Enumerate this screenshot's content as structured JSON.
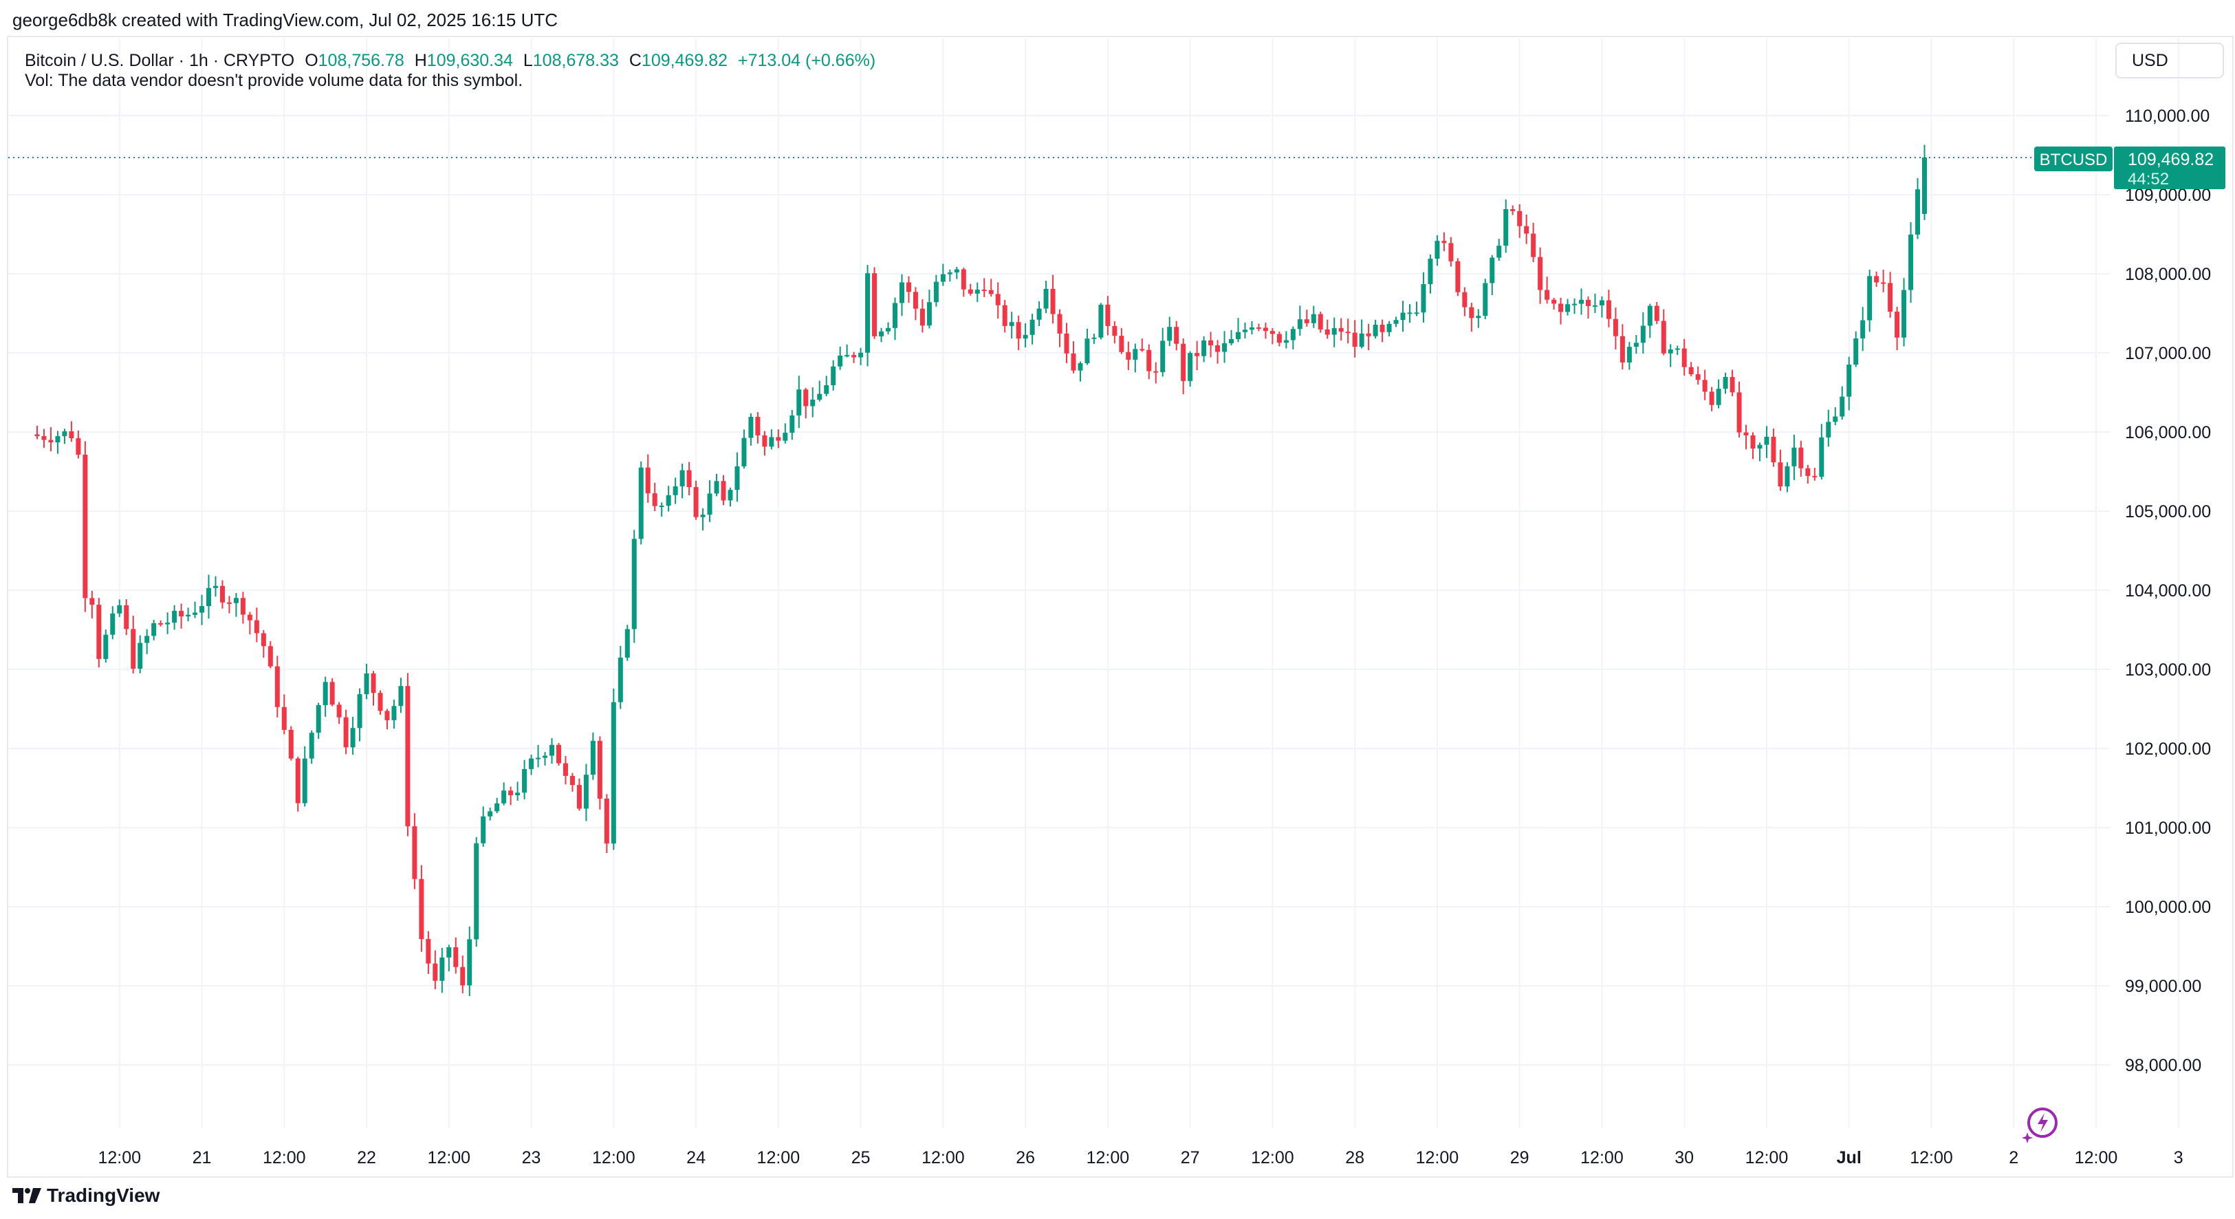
{
  "credit": "george6db8k created with TradingView.com, Jul 02, 2025 16:15 UTC",
  "legend": {
    "symbol": "Bitcoin / U.S. Dollar · 1h · CRYPTO",
    "o_label": "O",
    "o_value": "108,756.78",
    "h_label": "H",
    "h_value": "109,630.34",
    "l_label": "L",
    "l_value": "108,678.33",
    "c_label": "C",
    "c_value": "109,469.82",
    "change": "+713.04 (+0.66%)"
  },
  "volume_note": "Vol: The data vendor doesn't provide volume data for this symbol.",
  "currency": "USD",
  "price_tag": {
    "symbol": "BTCUSD",
    "price": "109,469.82",
    "countdown": "44:52"
  },
  "footer": {
    "brand": "TradingView"
  },
  "colors": {
    "up": "#089981",
    "down": "#f23645",
    "grid": "#f0f3fa",
    "text": "#131722"
  },
  "icons": {
    "logo": "tradingview-logo-icon",
    "bolt": "lightning-bolt-icon"
  },
  "chart_data": {
    "type": "candlestick",
    "title": "Bitcoin / U.S. Dollar · 1h · CRYPTO",
    "interval": "1h",
    "ylim": [
      97200,
      110700
    ],
    "y_ticks": [
      98000,
      99000,
      100000,
      101000,
      102000,
      103000,
      104000,
      105000,
      106000,
      107000,
      108000,
      109000,
      110000
    ],
    "y_tick_labels": [
      "98,000.00",
      "99,000.00",
      "100,000.00",
      "101,000.00",
      "102,000.00",
      "103,000.00",
      "104,000.00",
      "105,000.00",
      "106,000.00",
      "107,000.00",
      "108,000.00",
      "109,000.00",
      "110,000.00"
    ],
    "x_ticks": [
      {
        "t": 12,
        "label": "12:00",
        "bold": false
      },
      {
        "t": 24,
        "label": "21",
        "bold": false
      },
      {
        "t": 36,
        "label": "12:00",
        "bold": false
      },
      {
        "t": 48,
        "label": "22",
        "bold": false
      },
      {
        "t": 60,
        "label": "12:00",
        "bold": false
      },
      {
        "t": 72,
        "label": "23",
        "bold": false
      },
      {
        "t": 84,
        "label": "12:00",
        "bold": false
      },
      {
        "t": 96,
        "label": "24",
        "bold": false
      },
      {
        "t": 108,
        "label": "12:00",
        "bold": false
      },
      {
        "t": 120,
        "label": "25",
        "bold": false
      },
      {
        "t": 132,
        "label": "12:00",
        "bold": false
      },
      {
        "t": 144,
        "label": "26",
        "bold": false
      },
      {
        "t": 156,
        "label": "12:00",
        "bold": false
      },
      {
        "t": 168,
        "label": "27",
        "bold": false
      },
      {
        "t": 180,
        "label": "12:00",
        "bold": false
      },
      {
        "t": 192,
        "label": "28",
        "bold": false
      },
      {
        "t": 204,
        "label": "12:00",
        "bold": false
      },
      {
        "t": 216,
        "label": "29",
        "bold": false
      },
      {
        "t": 228,
        "label": "12:00",
        "bold": false
      },
      {
        "t": 240,
        "label": "30",
        "bold": false
      },
      {
        "t": 252,
        "label": "12:00",
        "bold": false
      },
      {
        "t": 264,
        "label": "Jul",
        "bold": true
      },
      {
        "t": 276,
        "label": "12:00",
        "bold": false
      },
      {
        "t": 288,
        "label": "2",
        "bold": false
      },
      {
        "t": 300,
        "label": "12:00",
        "bold": false
      },
      {
        "t": 312,
        "label": "3",
        "bold": false
      }
    ],
    "last_price": 109469.82,
    "anchors": [
      [
        0,
        105950
      ],
      [
        5,
        105980
      ],
      [
        6,
        105700
      ],
      [
        7,
        104000
      ],
      [
        8,
        103900
      ],
      [
        9,
        103200
      ],
      [
        12,
        103800
      ],
      [
        14,
        103100
      ],
      [
        17,
        103550
      ],
      [
        22,
        103700
      ],
      [
        26,
        104000
      ],
      [
        30,
        103800
      ],
      [
        33,
        103300
      ],
      [
        35,
        102600
      ],
      [
        38,
        101400
      ],
      [
        40,
        102200
      ],
      [
        42,
        102900
      ],
      [
        45,
        102100
      ],
      [
        48,
        102900
      ],
      [
        51,
        102400
      ],
      [
        53,
        102700
      ],
      [
        54,
        101100
      ],
      [
        56,
        99600
      ],
      [
        58,
        99000
      ],
      [
        60,
        99500
      ],
      [
        62,
        98950
      ],
      [
        63,
        99600
      ],
      [
        64,
        100900
      ],
      [
        67,
        101300
      ],
      [
        70,
        101500
      ],
      [
        72,
        101800
      ],
      [
        75,
        102100
      ],
      [
        77,
        101600
      ],
      [
        79,
        101300
      ],
      [
        81,
        102200
      ],
      [
        82,
        101400
      ],
      [
        83,
        100800
      ],
      [
        84,
        102500
      ],
      [
        86,
        103600
      ],
      [
        88,
        105600
      ],
      [
        90,
        105000
      ],
      [
        92,
        105100
      ],
      [
        94,
        105600
      ],
      [
        96,
        104900
      ],
      [
        99,
        105300
      ],
      [
        100,
        105050
      ],
      [
        102,
        105600
      ],
      [
        104,
        106200
      ],
      [
        106,
        105800
      ],
      [
        109,
        106100
      ],
      [
        111,
        106500
      ],
      [
        113,
        106300
      ],
      [
        116,
        106800
      ],
      [
        119,
        107000
      ],
      [
        120,
        107100
      ],
      [
        121,
        108000
      ],
      [
        122,
        107300
      ],
      [
        124,
        107400
      ],
      [
        126,
        107900
      ],
      [
        129,
        107400
      ],
      [
        131,
        107900
      ],
      [
        134,
        108000
      ],
      [
        136,
        107700
      ],
      [
        138,
        107900
      ],
      [
        140,
        107500
      ],
      [
        143,
        107200
      ],
      [
        145,
        107400
      ],
      [
        147,
        107900
      ],
      [
        149,
        107300
      ],
      [
        151,
        106800
      ],
      [
        153,
        107100
      ],
      [
        155,
        107500
      ],
      [
        157,
        107300
      ],
      [
        159,
        106900
      ],
      [
        161,
        107000
      ],
      [
        163,
        106700
      ],
      [
        165,
        107400
      ],
      [
        167,
        106700
      ],
      [
        168,
        106900
      ],
      [
        170,
        107100
      ],
      [
        172,
        107000
      ],
      [
        175,
        107200
      ],
      [
        177,
        107400
      ],
      [
        179,
        107350
      ],
      [
        181,
        107200
      ],
      [
        184,
        107350
      ],
      [
        186,
        107400
      ],
      [
        188,
        107200
      ],
      [
        190,
        107300
      ],
      [
        192,
        107100
      ],
      [
        194,
        107300
      ],
      [
        196,
        107200
      ],
      [
        198,
        107350
      ],
      [
        201,
        107600
      ],
      [
        203,
        108300
      ],
      [
        204,
        108500
      ],
      [
        206,
        108100
      ],
      [
        208,
        107600
      ],
      [
        210,
        107500
      ],
      [
        212,
        108100
      ],
      [
        214,
        108800
      ],
      [
        216,
        108600
      ],
      [
        218,
        108300
      ],
      [
        219,
        107700
      ],
      [
        222,
        107500
      ],
      [
        224,
        107700
      ],
      [
        226,
        107550
      ],
      [
        228,
        107650
      ],
      [
        230,
        107300
      ],
      [
        231,
        106900
      ],
      [
        233,
        107200
      ],
      [
        235,
        107500
      ],
      [
        237,
        107100
      ],
      [
        239,
        107000
      ],
      [
        242,
        106600
      ],
      [
        244,
        106400
      ],
      [
        246,
        106800
      ],
      [
        248,
        106000
      ],
      [
        250,
        105700
      ],
      [
        252,
        105900
      ],
      [
        254,
        105400
      ],
      [
        256,
        105800
      ],
      [
        258,
        105500
      ],
      [
        259,
        105400
      ],
      [
        260,
        105900
      ],
      [
        263,
        106500
      ],
      [
        265,
        107100
      ],
      [
        267,
        107900
      ],
      [
        269,
        107900
      ],
      [
        271,
        107300
      ],
      [
        272,
        107800
      ],
      [
        274,
        109000
      ],
      [
        275,
        109469.82
      ]
    ]
  }
}
